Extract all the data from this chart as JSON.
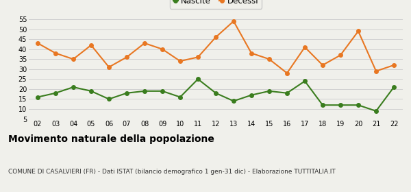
{
  "years": [
    "02",
    "03",
    "04",
    "05",
    "06",
    "07",
    "08",
    "09",
    "10",
    "11",
    "12",
    "13",
    "14",
    "15",
    "16",
    "17",
    "18",
    "19",
    "20",
    "21",
    "22"
  ],
  "nascite": [
    16,
    18,
    21,
    19,
    15,
    18,
    19,
    19,
    16,
    25,
    18,
    14,
    17,
    19,
    18,
    24,
    12,
    12,
    12,
    9,
    21
  ],
  "decessi": [
    43,
    38,
    35,
    42,
    31,
    36,
    43,
    40,
    34,
    36,
    46,
    54,
    38,
    35,
    28,
    41,
    32,
    37,
    49,
    29,
    32
  ],
  "nascite_color": "#3a7d1e",
  "decessi_color": "#e87722",
  "bg_color": "#f0f0eb",
  "grid_color": "#cccccc",
  "ylim": [
    5,
    55
  ],
  "yticks": [
    5,
    10,
    15,
    20,
    25,
    30,
    35,
    40,
    45,
    50,
    55
  ],
  "title": "Movimento naturale della popolazione",
  "subtitle": "COMUNE DI CASALVIERI (FR) - Dati ISTAT (bilancio demografico 1 gen-31 dic) - Elaborazione TUTTITALIA.IT",
  "legend_nascite": "Nascite",
  "legend_decessi": "Decessi",
  "title_fontsize": 10,
  "subtitle_fontsize": 6.5,
  "marker_size": 4,
  "linewidth": 1.5
}
